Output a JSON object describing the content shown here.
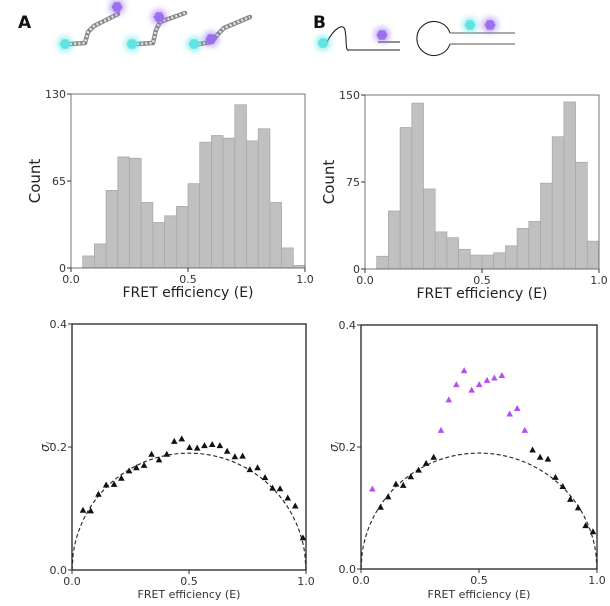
{
  "panels": {
    "a_label": "A",
    "b_label": "B"
  },
  "colors": {
    "bar_fill": "#c0c0c0",
    "bar_edge": "#a6a6a6",
    "donor_cyan": "#5fe3e3",
    "acceptor_purple": "#9a70ee",
    "scatter_black": "#111111",
    "scatter_purple": "#b64cf5"
  },
  "icons": [
    "dna-helix-icon",
    "donor-dye-icon",
    "acceptor-dye-icon",
    "hairpin-icon"
  ],
  "chart_data": [
    {
      "type": "bar",
      "panel": "A",
      "xlabel": "FRET efficiency (E)",
      "ylabel": "Count",
      "xlim": [
        0,
        1
      ],
      "ylim": [
        0,
        130
      ],
      "xticks": [
        "0.0",
        "0.5",
        "1.0"
      ],
      "yticks": [
        "0",
        "65",
        "130"
      ],
      "bin_width": 0.05,
      "bin_starts": [
        0.05,
        0.1,
        0.15,
        0.2,
        0.25,
        0.3,
        0.35,
        0.4,
        0.45,
        0.5,
        0.55,
        0.6,
        0.65,
        0.7,
        0.75,
        0.8,
        0.85,
        0.9,
        0.95
      ],
      "values": [
        9,
        18,
        58,
        83,
        82,
        49,
        34,
        39,
        46,
        63,
        94,
        99,
        97,
        122,
        95,
        104,
        49,
        15,
        2
      ]
    },
    {
      "type": "bar",
      "panel": "B",
      "xlabel": "FRET efficiency (E)",
      "ylabel": "Count",
      "xlim": [
        0,
        1
      ],
      "ylim": [
        0,
        150
      ],
      "xticks": [
        "0.0",
        "0.5",
        "1.0"
      ],
      "yticks": [
        "0",
        "75",
        "150"
      ],
      "bin_width": 0.05,
      "bin_starts": [
        0.05,
        0.1,
        0.15,
        0.2,
        0.25,
        0.3,
        0.35,
        0.4,
        0.45,
        0.5,
        0.55,
        0.6,
        0.65,
        0.7,
        0.75,
        0.8,
        0.85,
        0.9,
        0.95
      ],
      "values": [
        11,
        50,
        122,
        143,
        69,
        32,
        27,
        17,
        12,
        12,
        14,
        20,
        35,
        41,
        74,
        114,
        144,
        92,
        24
      ]
    },
    {
      "type": "scatter",
      "panel": "A",
      "xlabel": "FRET efficiency (E)",
      "ylabel": "σ",
      "ylabel_sub": "l",
      "xlim": [
        0,
        1
      ],
      "ylim": [
        0,
        0.4
      ],
      "xticks": [
        "0.0",
        "0.5",
        "1.0"
      ],
      "yticks": [
        "0.0",
        "0.2",
        "0.4"
      ],
      "reference_curve": {
        "style": "dashed",
        "peak": 0.19
      },
      "series": [
        {
          "color": "#111111",
          "marker": "triangle",
          "points": [
            [
              0.047,
              0.097
            ],
            [
              0.08,
              0.096
            ],
            [
              0.113,
              0.123
            ],
            [
              0.146,
              0.138
            ],
            [
              0.18,
              0.139
            ],
            [
              0.211,
              0.149
            ],
            [
              0.244,
              0.161
            ],
            [
              0.275,
              0.166
            ],
            [
              0.308,
              0.17
            ],
            [
              0.34,
              0.188
            ],
            [
              0.372,
              0.179
            ],
            [
              0.405,
              0.188
            ],
            [
              0.437,
              0.209
            ],
            [
              0.469,
              0.213
            ],
            [
              0.502,
              0.199
            ],
            [
              0.535,
              0.198
            ],
            [
              0.566,
              0.202
            ],
            [
              0.599,
              0.204
            ],
            [
              0.632,
              0.202
            ],
            [
              0.663,
              0.193
            ],
            [
              0.696,
              0.184
            ],
            [
              0.729,
              0.185
            ],
            [
              0.76,
              0.163
            ],
            [
              0.793,
              0.166
            ],
            [
              0.825,
              0.15
            ],
            [
              0.857,
              0.133
            ],
            [
              0.889,
              0.132
            ],
            [
              0.922,
              0.117
            ],
            [
              0.954,
              0.104
            ],
            [
              0.987,
              0.052
            ]
          ]
        }
      ]
    },
    {
      "type": "scatter",
      "panel": "B",
      "xlabel": "FRET efficiency (E)",
      "ylabel": "σ",
      "ylabel_sub": "l",
      "xlim": [
        0,
        1
      ],
      "ylim": [
        0,
        0.4
      ],
      "xticks": [
        "0.0",
        "0.5",
        "1.0"
      ],
      "yticks": [
        "0.0",
        "0.2",
        "0.4"
      ],
      "reference_curve": {
        "style": "dashed",
        "peak": 0.19
      },
      "series": [
        {
          "color": "#b64cf5",
          "marker": "triangle",
          "points": [
            [
              0.048,
              0.131
            ],
            [
              0.339,
              0.227
            ],
            [
              0.372,
              0.277
            ],
            [
              0.404,
              0.302
            ],
            [
              0.437,
              0.325
            ],
            [
              0.469,
              0.293
            ],
            [
              0.501,
              0.302
            ],
            [
              0.534,
              0.309
            ],
            [
              0.565,
              0.313
            ],
            [
              0.597,
              0.317
            ],
            [
              0.63,
              0.254
            ],
            [
              0.662,
              0.263
            ],
            [
              0.694,
              0.227
            ]
          ]
        },
        {
          "color": "#111111",
          "marker": "triangle",
          "points": [
            [
              0.083,
              0.101
            ],
            [
              0.115,
              0.118
            ],
            [
              0.148,
              0.139
            ],
            [
              0.179,
              0.137
            ],
            [
              0.211,
              0.151
            ],
            [
              0.244,
              0.162
            ],
            [
              0.276,
              0.173
            ],
            [
              0.308,
              0.183
            ],
            [
              0.727,
              0.195
            ],
            [
              0.759,
              0.183
            ],
            [
              0.792,
              0.18
            ],
            [
              0.824,
              0.15
            ],
            [
              0.855,
              0.135
            ],
            [
              0.887,
              0.114
            ],
            [
              0.92,
              0.1
            ],
            [
              0.952,
              0.071
            ],
            [
              0.983,
              0.061
            ]
          ]
        }
      ]
    }
  ]
}
